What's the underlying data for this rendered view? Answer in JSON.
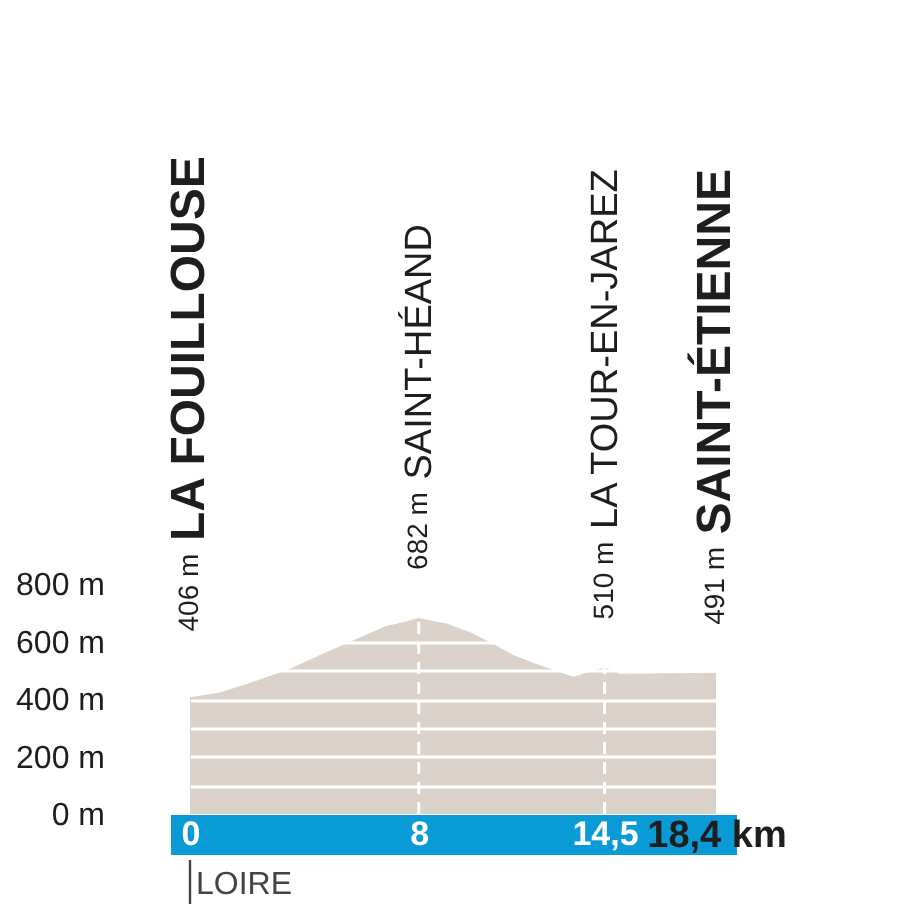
{
  "chart_data": {
    "type": "area",
    "x": [
      0,
      1.05,
      2.22,
      3.38,
      4.55,
      5.72,
      6.88,
      7.23,
      8,
      9.0,
      9.8,
      10.6,
      11.3,
      12.1,
      13.4,
      14.5,
      15.05,
      18.4
    ],
    "series": [
      {
        "color": "#dbd3cb",
        "values": [
          406,
          423,
          460,
          500,
          553,
          604,
          655,
          662,
          682,
          662,
          632,
          592,
          553,
          523,
          477,
          510,
          488,
          491
        ]
      }
    ],
    "xlim": [
      0,
      18.4
    ],
    "xticks": [
      {
        "value": 0,
        "label": "0"
      },
      {
        "value": 8,
        "label": "8"
      },
      {
        "value": 14.5,
        "label": "14,5"
      },
      {
        "value": 18.4,
        "label": "18,4 km"
      }
    ],
    "ylim": [
      0,
      800
    ],
    "yticks": [
      {
        "value": 0,
        "label": "0 m"
      },
      {
        "value": 100,
        "label": null
      },
      {
        "value": 200,
        "label": "200 m"
      },
      {
        "value": 300,
        "label": null
      },
      {
        "value": 400,
        "label": "400 m"
      },
      {
        "value": 500,
        "label": null
      },
      {
        "value": 600,
        "label": "600 m"
      },
      {
        "value": 800,
        "label": "800 m"
      }
    ],
    "grid": "y",
    "ref_lines": [
      {
        "axis": "x",
        "value": 8,
        "color": "#ffffff",
        "line_style": "dashed"
      },
      {
        "axis": "x",
        "value": 14.5,
        "color": "#ffffff",
        "line_style": "dashed"
      }
    ],
    "annotations": [
      {
        "text": "406 m",
        "x": 0,
        "y": 406
      },
      "LA FOUILLOUSE",
      {
        "text": "682 m",
        "x": 8,
        "y": 682
      },
      "SAINT-HÉAND",
      {
        "text": "510 m",
        "x": 14.5,
        "y": 510
      },
      "LA TOUR-EN-JAREZ",
      {
        "text": "491 m",
        "x": 18.4,
        "y": 491
      },
      "SAINT-ÉTIENNE",
      "LOIRE"
    ]
  }
}
